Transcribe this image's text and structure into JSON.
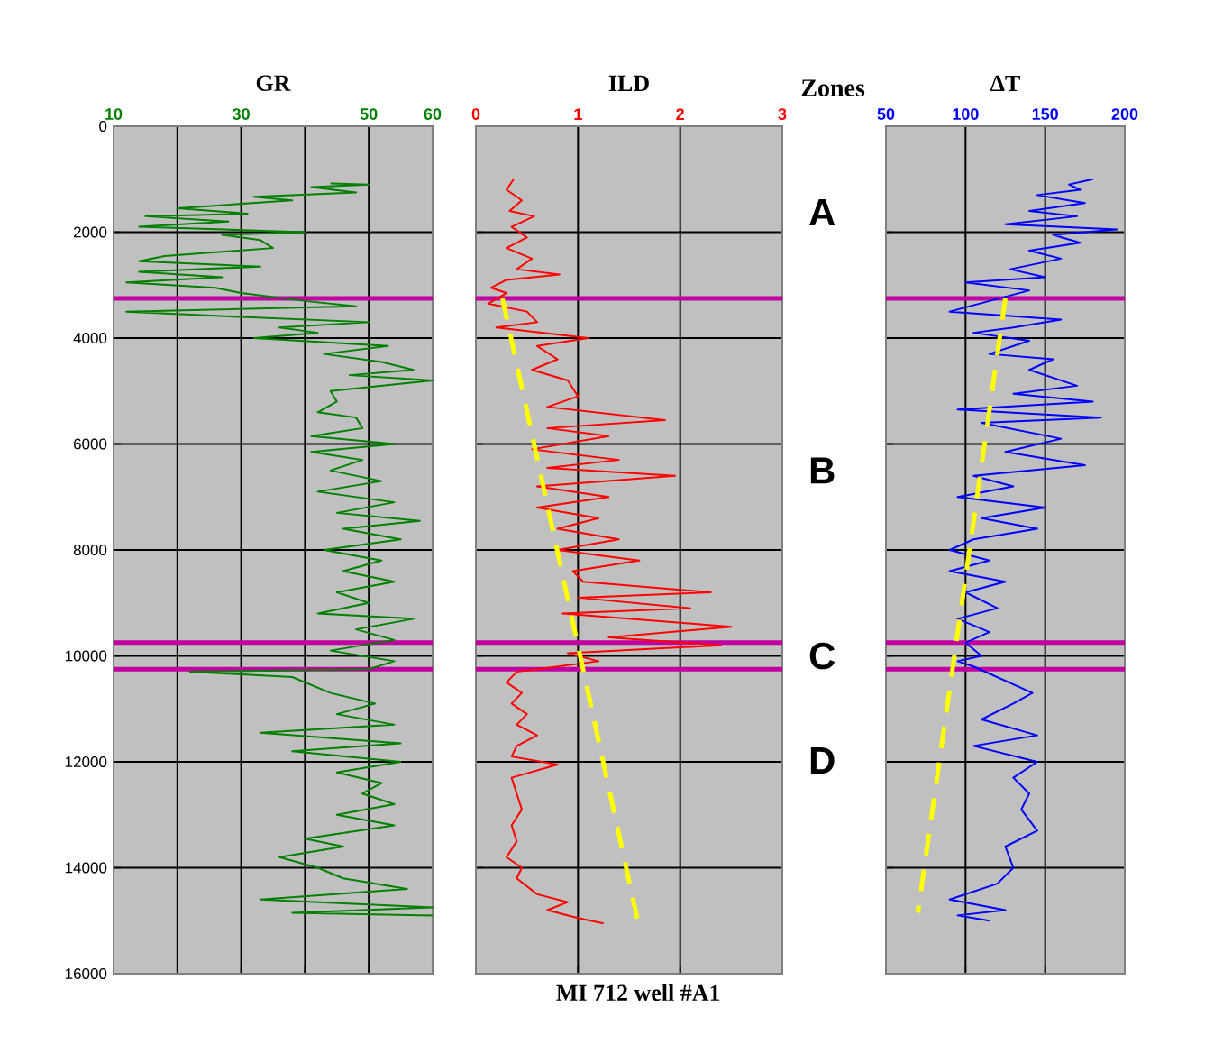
{
  "chart_data": [
    {
      "type": "line",
      "title": "GR",
      "xlim": [
        10,
        60
      ],
      "xticks": [
        10,
        {
          "value": 20,
          "label": null
        },
        30,
        {
          "value": 40,
          "label": null
        },
        50,
        60
      ],
      "ylim": [
        16000,
        0
      ],
      "yticks": [
        0,
        2000,
        4000,
        6000,
        8000,
        10000,
        12000,
        14000,
        16000
      ],
      "grid": true,
      "marker": "none",
      "series": [
        {
          "color": "#008000",
          "x": [
            44,
            50,
            41,
            48,
            32,
            38,
            20,
            31,
            15,
            28,
            14,
            40,
            27,
            33,
            35,
            18,
            14,
            33,
            14,
            27,
            12,
            26,
            30,
            40,
            48,
            12,
            30,
            50,
            36,
            42,
            32,
            53,
            43,
            52,
            57,
            47,
            60,
            44,
            45,
            42,
            48,
            49,
            41,
            54,
            41,
            49,
            44,
            52,
            42,
            54,
            45,
            58,
            46,
            55,
            43,
            52,
            46,
            54,
            45,
            50,
            42,
            57,
            48,
            54,
            44,
            54,
            50,
            22,
            38,
            44,
            51,
            45,
            54,
            33,
            55,
            38,
            55,
            45,
            52,
            49,
            54,
            45,
            54,
            40,
            46,
            36,
            42,
            46,
            56,
            33,
            60,
            38,
            60
          ],
          "values": [
            1080,
            1100,
            1150,
            1250,
            1330,
            1400,
            1550,
            1650,
            1700,
            1800,
            1900,
            2000,
            2050,
            2150,
            2300,
            2450,
            2550,
            2650,
            2750,
            2850,
            2950,
            3050,
            3150,
            3300,
            3400,
            3500,
            3600,
            3700,
            3800,
            3900,
            4000,
            4150,
            4300,
            4450,
            4600,
            4700,
            4800,
            5000,
            5200,
            5400,
            5500,
            5700,
            5850,
            6000,
            6150,
            6300,
            6500,
            6700,
            6900,
            7100,
            7300,
            7450,
            7600,
            7800,
            8000,
            8200,
            8400,
            8600,
            8800,
            9000,
            9200,
            9300,
            9500,
            9700,
            9900,
            10100,
            10250,
            10300,
            10400,
            10700,
            10900,
            11100,
            11300,
            11450,
            11650,
            11800,
            12000,
            12200,
            12400,
            12600,
            12800,
            13000,
            13200,
            13450,
            13600,
            13800,
            14000,
            14200,
            14400,
            14600,
            14750,
            14850,
            14900
          ]
        }
      ],
      "ref_lines": [
        {
          "axis": "y",
          "value": 3250,
          "color": "#c000a0"
        },
        {
          "axis": "y",
          "value": 9750,
          "color": "#c000a0"
        },
        {
          "axis": "y",
          "value": 10250,
          "color": "#c000a0"
        }
      ]
    },
    {
      "type": "line",
      "title": "ILD",
      "xlim": [
        0,
        3
      ],
      "xticks": [
        0,
        1,
        2,
        3
      ],
      "ylim": [
        16000,
        0
      ],
      "yticks": [
        0,
        2000,
        4000,
        6000,
        8000,
        10000,
        12000,
        14000,
        16000
      ],
      "tick_labels": "x",
      "grid": true,
      "marker": "none",
      "series": [
        {
          "color": "#ff0000",
          "x": [
            0.37,
            0.3,
            0.45,
            0.33,
            0.57,
            0.35,
            0.5,
            0.3,
            0.55,
            0.4,
            0.82,
            0.3,
            0.15,
            0.3,
            0.12,
            0.5,
            0.6,
            0.2,
            1.1,
            0.6,
            0.8,
            0.55,
            0.9,
            1.0,
            0.7,
            1.85,
            0.7,
            1.3,
            0.55,
            1.4,
            0.7,
            1.95,
            0.6,
            1.3,
            0.6,
            1.2,
            0.8,
            1.4,
            0.8,
            1.6,
            0.95,
            1.05,
            2.3,
            1.0,
            2.1,
            0.85,
            2.5,
            1.3,
            2.4,
            0.9,
            1.2,
            0.6,
            0.4,
            0.3,
            0.45,
            0.35,
            0.5,
            0.4,
            0.6,
            0.4,
            0.35,
            0.8,
            0.35,
            0.4,
            0.45,
            0.35,
            0.4,
            0.3,
            0.45,
            0.4,
            0.6,
            0.9,
            0.7,
            1.0,
            1.25
          ],
          "values": [
            1000,
            1200,
            1400,
            1600,
            1700,
            1900,
            2100,
            2300,
            2500,
            2700,
            2800,
            2900,
            3050,
            3150,
            3350,
            3500,
            3700,
            3800,
            4000,
            4150,
            4400,
            4600,
            4800,
            5100,
            5300,
            5550,
            5700,
            5850,
            6100,
            6300,
            6450,
            6600,
            6800,
            7000,
            7200,
            7400,
            7600,
            7800,
            8000,
            8200,
            8400,
            8600,
            8800,
            8900,
            9100,
            9200,
            9450,
            9650,
            9800,
            9950,
            10100,
            10250,
            10300,
            10500,
            10700,
            10900,
            11100,
            11300,
            11500,
            11700,
            11900,
            12050,
            12300,
            12600,
            12900,
            13200,
            13500,
            13800,
            14000,
            14200,
            14500,
            14650,
            14800,
            14950,
            15050
          ]
        },
        {
          "color": "#ffff00",
          "line_style": "dashed",
          "x": [
            0.26,
            1.59
          ],
          "values": [
            3250,
            15050
          ]
        }
      ],
      "ref_lines": [
        {
          "axis": "y",
          "value": 3250,
          "color": "#c000a0"
        },
        {
          "axis": "y",
          "value": 9750,
          "color": "#c000a0"
        },
        {
          "axis": "y",
          "value": 10250,
          "color": "#c000a0"
        }
      ],
      "annotations": [
        "Zones",
        "A",
        "B",
        "C",
        "D",
        "MI 712 well #A1"
      ]
    },
    {
      "type": "line",
      "title": "ΔT",
      "xlim": [
        50,
        200
      ],
      "xticks": [
        50,
        100,
        150,
        200
      ],
      "ylim": [
        16000,
        0
      ],
      "yticks": [
        0,
        2000,
        4000,
        6000,
        8000,
        10000,
        12000,
        14000,
        16000
      ],
      "tick_labels": "x",
      "grid": true,
      "marker": "none",
      "series": [
        {
          "color": "#0000ff",
          "x": [
            180,
            165,
            172,
            145,
            175,
            140,
            170,
            125,
            195,
            155,
            172,
            140,
            160,
            128,
            150,
            100,
            140,
            115,
            90,
            160,
            130,
            105,
            140,
            115,
            155,
            140,
            170,
            130,
            180,
            95,
            185,
            110,
            160,
            125,
            175,
            105,
            130,
            95,
            150,
            110,
            145,
            105,
            90,
            115,
            90,
            125,
            100,
            120,
            95,
            115,
            100,
            110,
            95,
            105,
            142,
            130,
            110,
            145,
            105,
            145,
            130,
            140,
            135,
            145,
            125,
            130,
            120,
            90,
            125,
            95,
            115
          ],
          "values": [
            1000,
            1100,
            1200,
            1300,
            1450,
            1600,
            1700,
            1850,
            1950,
            2050,
            2200,
            2350,
            2500,
            2700,
            2850,
            2950,
            3100,
            3300,
            3500,
            3650,
            3800,
            3900,
            4050,
            4300,
            4400,
            4600,
            4900,
            5050,
            5200,
            5350,
            5500,
            5600,
            5900,
            6150,
            6400,
            6600,
            6800,
            7000,
            7200,
            7400,
            7600,
            7800,
            8000,
            8200,
            8400,
            8600,
            8800,
            9100,
            9300,
            9550,
            9750,
            10000,
            10100,
            10200,
            10700,
            10900,
            11200,
            11500,
            11700,
            12000,
            12300,
            12600,
            12900,
            13300,
            13600,
            14000,
            14300,
            14600,
            14800,
            14900,
            15000
          ]
        },
        {
          "color": "#ffff00",
          "line_style": "dashed",
          "x": [
            125,
            70
          ],
          "values": [
            3250,
            14850
          ]
        }
      ],
      "ref_lines": [
        {
          "axis": "y",
          "value": 3250,
          "color": "#c000a0"
        },
        {
          "axis": "y",
          "value": 9750,
          "color": "#c000a0"
        },
        {
          "axis": "y",
          "value": 10250,
          "color": "#c000a0"
        }
      ]
    }
  ]
}
